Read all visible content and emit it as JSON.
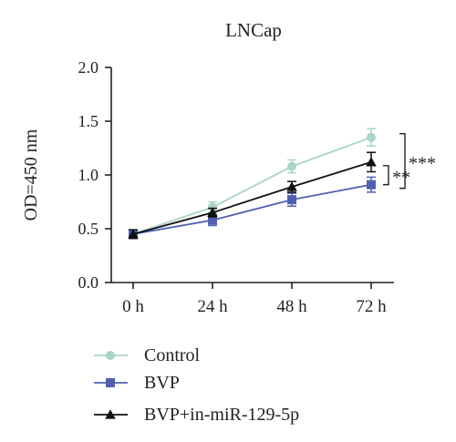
{
  "chart_data": {
    "type": "line",
    "title": "LNCap",
    "xlabel": "",
    "ylabel": "OD=450 nm",
    "categories": [
      "0 h",
      "24 h",
      "48 h",
      "72 h"
    ],
    "ylim": [
      0.0,
      2.0
    ],
    "yticks": [
      "0.0",
      "0.5",
      "1.0",
      "1.5",
      "2.0"
    ],
    "grid": false,
    "legend_position": "bottom-left",
    "series": [
      {
        "name": "Control",
        "color": "#a8d5c5",
        "marker": "circle",
        "values": [
          0.45,
          0.7,
          1.08,
          1.35
        ],
        "errors": [
          0.04,
          0.05,
          0.06,
          0.08
        ]
      },
      {
        "name": "BVP",
        "color": "#5060b0",
        "marker": "square",
        "values": [
          0.45,
          0.58,
          0.77,
          0.91
        ],
        "errors": [
          0.04,
          0.05,
          0.06,
          0.07
        ]
      },
      {
        "name": "BVP+in-miR-129-5p",
        "color": "#111111",
        "marker": "triangle",
        "values": [
          0.45,
          0.65,
          0.89,
          1.12
        ],
        "errors": [
          0.04,
          0.04,
          0.05,
          0.09
        ]
      }
    ],
    "annotations": [
      {
        "text": "**",
        "between": [
          "BVP",
          "BVP+in-miR-129-5p"
        ]
      },
      {
        "text": "***",
        "between": [
          "Control",
          "BVP"
        ]
      }
    ]
  }
}
